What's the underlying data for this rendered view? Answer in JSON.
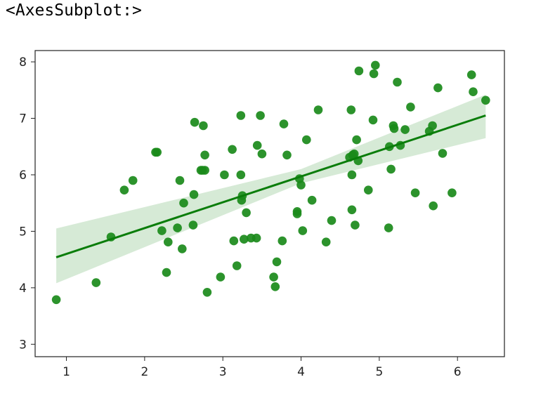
{
  "output_repr": "<AxesSubplot:>",
  "colors": {
    "points": "#1a8a1a",
    "line": "#0a7d0a",
    "band": "#cfe6cf",
    "axes": "#222222"
  },
  "chart_data": {
    "type": "scatter",
    "title": "",
    "xlabel": "",
    "ylabel": "",
    "xlim": [
      0.6,
      6.6
    ],
    "ylim": [
      2.78,
      8.2
    ],
    "grid": false,
    "xticks": [
      1,
      2,
      3,
      4,
      5,
      6
    ],
    "yticks": [
      3,
      4,
      5,
      6,
      7,
      8
    ],
    "x": [
      0.87,
      1.38,
      1.57,
      1.74,
      1.85,
      2.14,
      2.16,
      2.22,
      2.28,
      2.3,
      2.42,
      2.45,
      2.48,
      2.5,
      2.62,
      2.63,
      2.64,
      2.72,
      2.74,
      2.75,
      2.77,
      2.77,
      2.8,
      2.97,
      3.02,
      3.12,
      3.14,
      3.18,
      3.23,
      3.23,
      3.24,
      3.25,
      3.27,
      3.3,
      3.36,
      3.43,
      3.44,
      3.48,
      3.5,
      3.65,
      3.67,
      3.69,
      3.76,
      3.78,
      3.82,
      3.95,
      3.95,
      3.98,
      4.0,
      4.02,
      4.07,
      4.14,
      4.22,
      4.32,
      4.39,
      4.62,
      4.64,
      4.65,
      4.65,
      4.66,
      4.68,
      4.69,
      4.71,
      4.73,
      4.74,
      4.86,
      4.92,
      4.93,
      4.95,
      5.12,
      5.13,
      5.15,
      5.18,
      5.19,
      5.23,
      5.27,
      5.33,
      5.4,
      5.46,
      5.64,
      5.68,
      5.69,
      5.75,
      5.81,
      5.93,
      6.18,
      6.2,
      6.36
    ],
    "y": [
      3.79,
      4.09,
      4.9,
      5.73,
      5.9,
      6.4,
      6.4,
      5.01,
      4.27,
      4.81,
      5.06,
      5.9,
      4.69,
      5.5,
      5.11,
      5.65,
      6.93,
      6.08,
      6.08,
      6.87,
      6.35,
      6.08,
      3.92,
      4.19,
      6.0,
      6.45,
      4.83,
      4.39,
      7.05,
      6.0,
      5.55,
      5.63,
      4.86,
      5.33,
      4.88,
      4.88,
      6.52,
      7.05,
      6.37,
      4.19,
      4.02,
      4.46,
      4.83,
      6.9,
      6.35,
      5.31,
      5.35,
      5.93,
      5.82,
      5.01,
      6.62,
      5.55,
      7.15,
      4.81,
      5.19,
      6.31,
      7.15,
      6.0,
      5.38,
      6.35,
      6.37,
      5.11,
      6.62,
      6.25,
      7.84,
      5.73,
      6.97,
      7.79,
      7.94,
      5.06,
      6.5,
      6.1,
      6.87,
      6.82,
      7.64,
      6.52,
      6.8,
      7.2,
      5.68,
      6.77,
      6.87,
      5.45,
      7.54,
      6.38,
      5.68,
      7.77,
      7.47,
      7.32
    ],
    "regression": {
      "x_start": 0.87,
      "y_start": 4.54,
      "x_end": 6.36,
      "y_end": 7.05,
      "ci_lower_start": 4.08,
      "ci_upper_start": 5.05,
      "ci_lower_mid": 5.85,
      "ci_upper_mid": 6.1,
      "x_mid": 4.0,
      "ci_lower_end": 6.65,
      "ci_upper_end": 7.42
    }
  }
}
